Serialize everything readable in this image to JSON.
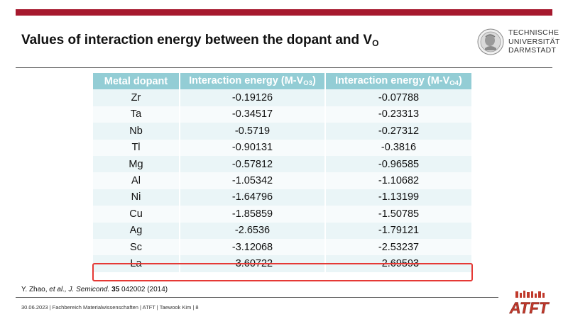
{
  "slide": {
    "title_main": "Values of interaction energy between the dopant and V",
    "title_sub": "O",
    "logo_lines": [
      "TECHNISCHE",
      "UNIVERSITÄT",
      "DARMSTADT"
    ]
  },
  "table": {
    "headers": [
      {
        "main": "Metal dopant",
        "sub": ""
      },
      {
        "main": "Interaction energy (M-V",
        "sub": "O3",
        "close": ")"
      },
      {
        "main": "Interaction energy (M-V",
        "sub": "O4",
        "close": ")"
      }
    ],
    "rows": [
      [
        "Zr",
        "-0.19126",
        "-0.07788"
      ],
      [
        "Ta",
        "-0.34517",
        "-0.23313"
      ],
      [
        "Nb",
        "-0.5719",
        "-0.27312"
      ],
      [
        "Tl",
        "-0.90131",
        "-0.3816"
      ],
      [
        "Mg",
        "-0.57812",
        "-0.96585"
      ],
      [
        "Al",
        "-1.05342",
        "-1.10682"
      ],
      [
        "Ni",
        "-1.64796",
        "-1.13199"
      ],
      [
        "Cu",
        "-1.85859",
        "-1.50785"
      ],
      [
        "Ag",
        "-2.6536",
        "-1.79121"
      ],
      [
        "Sc",
        "-3.12068",
        "-2.53237"
      ],
      [
        "La",
        "-3.60722",
        "-2.69593"
      ]
    ],
    "highlight_color": "#e53935",
    "header_color": "#93cdd5"
  },
  "citation": {
    "authors": "Y. Zhao, ",
    "etal": "et al., ",
    "journal": "J. Semicond.",
    "volume": " 35",
    "rest": " 042002 (2014)"
  },
  "footer": {
    "text": "30.06.2023  |  Fachbereich Materialwissenschaften  |  ATFT  |  Taewook Kim  |  8"
  },
  "brand": {
    "accent": "#a6192e",
    "atft_logo_text": "ATFT"
  }
}
